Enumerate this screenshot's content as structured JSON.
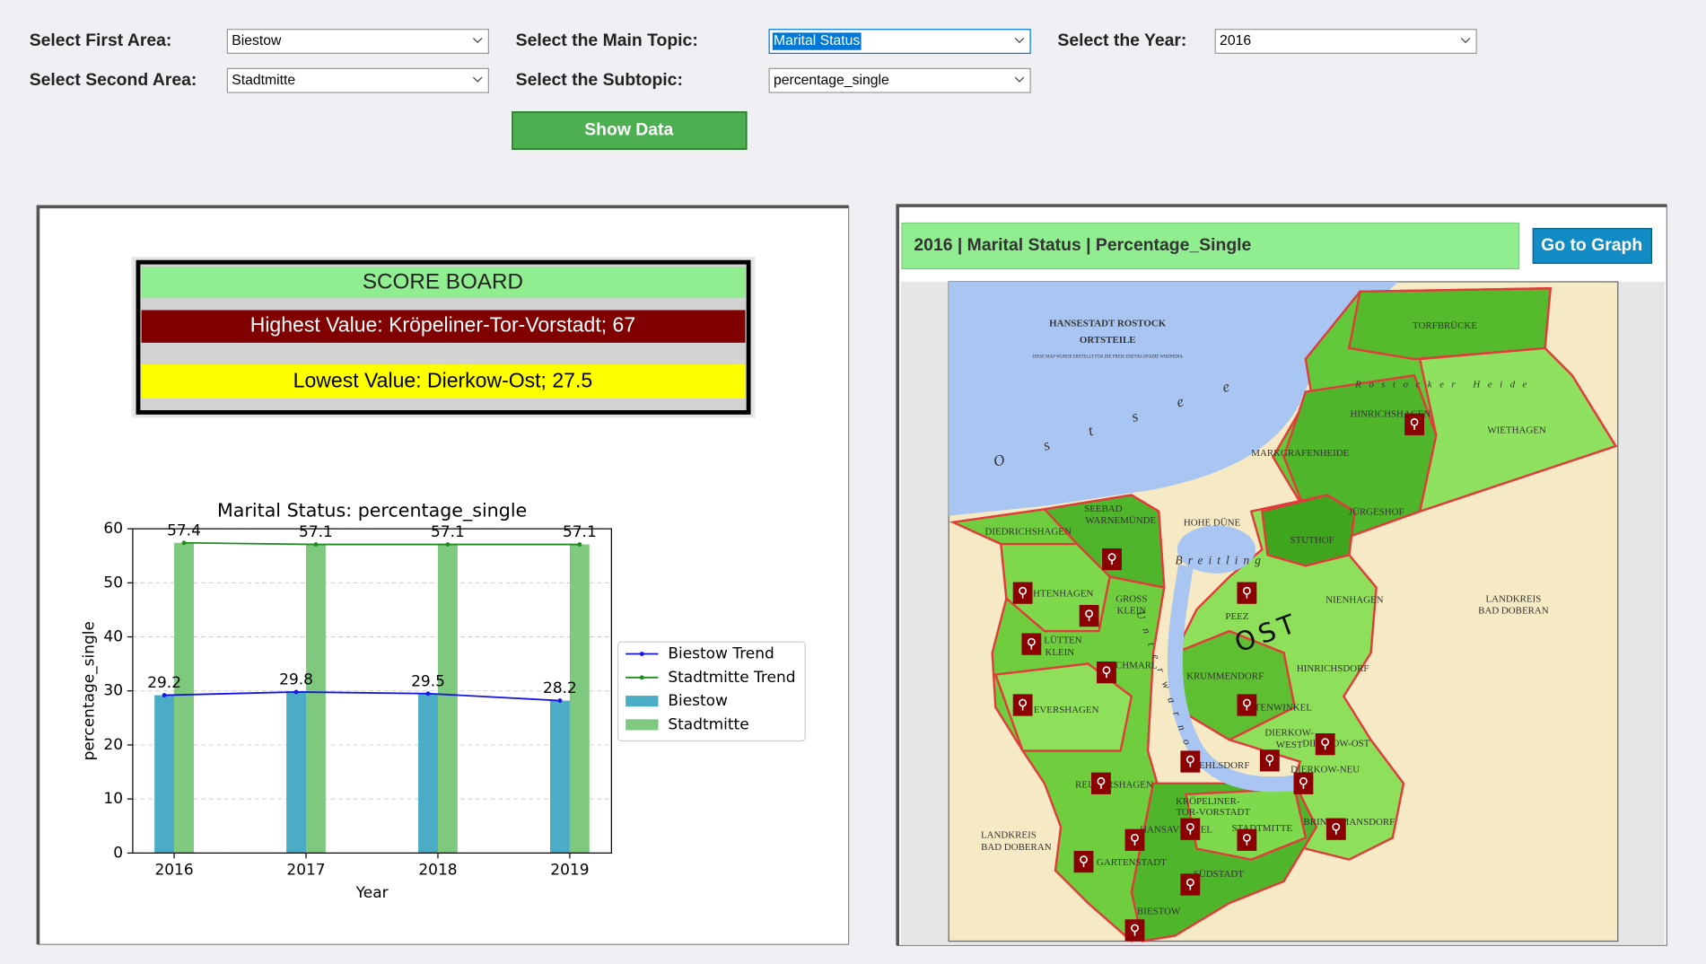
{
  "controls": {
    "first_area_label": "Select First Area:",
    "first_area": "Biestow",
    "second_area_label": "Select Second Area:",
    "second_area": "Stadtmitte",
    "topic_label": "Select the Main Topic:",
    "topic": "Marital Status",
    "subtopic_label": "Select the Subtopic:",
    "subtopic": "percentage_single",
    "year_label": "Select the Year:",
    "year": "2016",
    "show_button": "Show Data"
  },
  "scoreboard": {
    "title": "SCORE BOARD",
    "highest": "Highest Value: Kröpeliner-Tor-Vorstadt; 67",
    "lowest": "Lowest Value: Dierkow-Ost; 27.5"
  },
  "chart_data": {
    "type": "bar",
    "title": "Marital Status: percentage_single",
    "x_label": "Year",
    "y_label": "percentage_single",
    "categories": [
      "2016",
      "2017",
      "2018",
      "2019"
    ],
    "series": [
      {
        "name": "Biestow Trend",
        "type": "line",
        "color": "#1515e6",
        "values": [
          29.2,
          29.8,
          29.5,
          28.2
        ]
      },
      {
        "name": "Stadtmitte Trend",
        "type": "line",
        "color": "#1e8c1e",
        "values": [
          57.4,
          57.1,
          57.1,
          57.1
        ]
      },
      {
        "name": "Biestow",
        "type": "bar",
        "color": "#4bacc6",
        "values": [
          29.2,
          29.8,
          29.5,
          28.2
        ]
      },
      {
        "name": "Stadtmitte",
        "type": "bar",
        "color": "#7fc97f",
        "values": [
          57.4,
          57.1,
          57.1,
          57.1
        ]
      }
    ],
    "ylim": [
      0,
      60
    ],
    "yticks": [
      0,
      10,
      20,
      30,
      40,
      50,
      60
    ],
    "grid": true,
    "data_labels": true,
    "legend": "right"
  },
  "map_panel": {
    "header": "2016 | Marital Status | Percentage_Single",
    "button": "Go to Graph",
    "map": {
      "title": [
        "HANSESTADT ROSTOCK",
        "ORTSTEILE"
      ],
      "note": "DIESE MAP WURDE ERSTELLT FÜR DIE FREIE ENZYKLOPÄDIE WIKIPEDIA",
      "labels": [
        "TORFBRÜCKE",
        "Rostocker Heide",
        "HINRICHSHAGEN",
        "WIETHAGEN",
        "MARKGRAFENHEIDE",
        "Ostsee",
        "JÜRGESHOF",
        "SEEBAD",
        "WARNEMÜNDE",
        "HOHE DÜNE",
        "DIEDRICHSHAGEN",
        "STUTHOF",
        "Breitling",
        "LICHTENHAGEN",
        "GROSS",
        "KLEIN",
        "PEEZ",
        "NIENHAGEN",
        "LANDKREIS",
        "BAD DOBERAN",
        "OST",
        "LÜTTEN",
        "KLEIN",
        "SCHMARL",
        "HINRICHSDORF",
        "KRUMMENDORF",
        "EVERSHAGEN",
        "Unterwarnow",
        "TOITENWINKEL",
        "DIERKOW-",
        "WEST",
        "DIERKOW-OST",
        "DIERKOW-NEU",
        "GEHLSDORF",
        "REUTERSHAGEN",
        "KRÖPELINER-",
        "TOR-VORSTADT",
        "HANSAVIERTEL",
        "STADTMITTE",
        "BRINCKMANSDORF",
        "LANDKREIS",
        "BAD DOBERAN",
        "GARTENSTADT",
        "SÜDSTADT",
        "BIESTOW"
      ]
    }
  }
}
